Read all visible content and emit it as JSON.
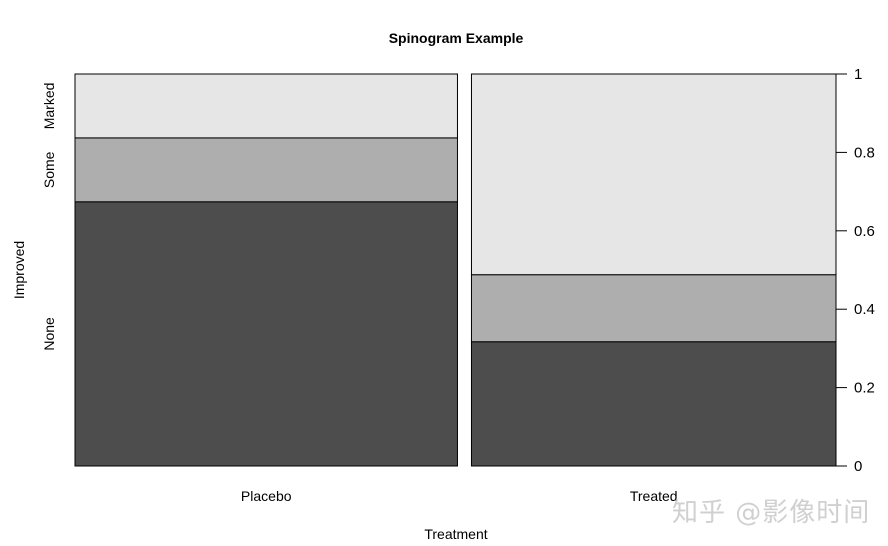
{
  "chart_data": {
    "type": "spinogram",
    "title": "Spinogram Example",
    "xlabel": "Treatment",
    "ylabel": "Improved",
    "categories": [
      "Placebo",
      "Treated"
    ],
    "category_width_share": [
      0.512,
      0.488
    ],
    "levels": [
      "None",
      "Some",
      "Marked"
    ],
    "level_colors": [
      "#4d4d4d",
      "#aeaeae",
      "#e6e6e6"
    ],
    "series": [
      {
        "name": "None",
        "values": [
          0.674,
          0.317
        ]
      },
      {
        "name": "Some",
        "values": [
          0.163,
          0.171
        ]
      },
      {
        "name": "Marked",
        "values": [
          0.163,
          0.512
        ]
      }
    ],
    "ylim": [
      0,
      1
    ],
    "right_axis_ticks": [
      "0",
      "0.2",
      "0.4",
      "0.6",
      "0.8",
      "1"
    ],
    "right_axis_values": [
      0,
      0.2,
      0.4,
      0.6,
      0.8,
      1
    ],
    "grid": false,
    "legend": "none"
  },
  "watermark": "知乎 @影像时间"
}
